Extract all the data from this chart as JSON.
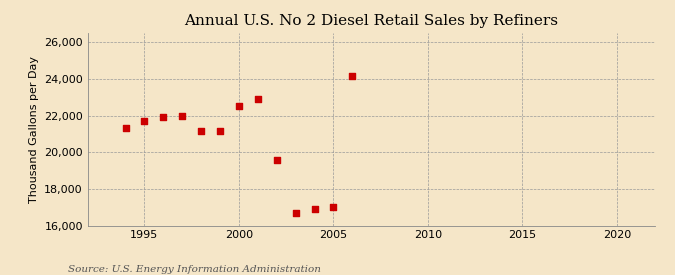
{
  "title": "Annual U.S. No 2 Diesel Retail Sales by Refiners",
  "ylabel": "Thousand Gallons per Day",
  "source": "Source: U.S. Energy Information Administration",
  "background_color": "#f5e6c8",
  "plot_bg_color": "#f5e6c8",
  "years": [
    1994,
    1995,
    1996,
    1997,
    1998,
    1999,
    2000,
    2001,
    2002,
    2003,
    2004,
    2005,
    2006
  ],
  "values": [
    21300,
    21700,
    21900,
    21950,
    21150,
    21150,
    22500,
    22900,
    19600,
    16700,
    16900,
    17000,
    24150
  ],
  "marker_color": "#cc0000",
  "xlim": [
    1992,
    2022
  ],
  "ylim": [
    16000,
    26500
  ],
  "xticks": [
    1995,
    2000,
    2005,
    2010,
    2015,
    2020
  ],
  "yticks": [
    16000,
    18000,
    20000,
    22000,
    24000,
    26000
  ],
  "title_fontsize": 11,
  "label_fontsize": 8,
  "tick_fontsize": 8,
  "source_fontsize": 7.5
}
